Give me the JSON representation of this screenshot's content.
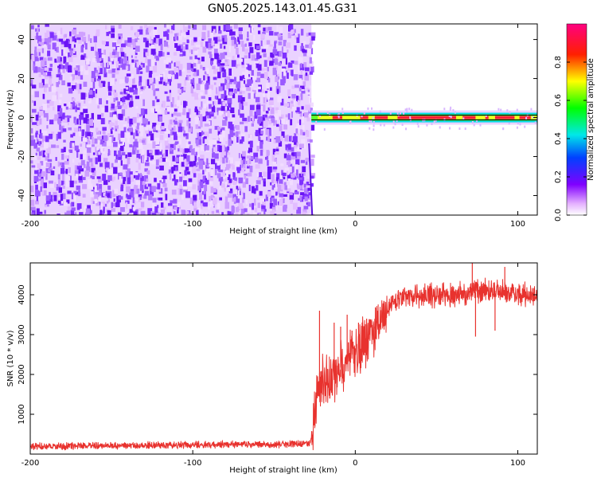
{
  "title": "GN05.2025.143.01.45.G31",
  "colors": {
    "snr_line": "#e8322e",
    "spectral_line": "#000000"
  },
  "chart_data": [
    {
      "type": "heatmap",
      "xlabel": "Height of straight line (km)",
      "ylabel": "Frequency (Hz)",
      "xlim": [
        -200,
        112
      ],
      "ylim": [
        -50,
        48
      ],
      "xticks": [
        -200,
        -100,
        0,
        100
      ],
      "yticks": [
        -40,
        -20,
        0,
        20,
        40
      ],
      "noise_region_x": [
        -200,
        -27
      ],
      "signal_region_x": [
        -27,
        112
      ],
      "signal_frequency_hz": 0,
      "colorbar": {
        "label": "Normalized spectral amplitude",
        "range": [
          0,
          1
        ],
        "ticks": [
          0.0,
          0.2,
          0.4,
          0.6,
          0.8
        ],
        "colormap": "rainbow (white-purple-blue-cyan-green-yellow-red-magenta)"
      }
    },
    {
      "type": "line",
      "xlabel": "Height of straight line (km)",
      "ylabel": "SNR (10 * v/v)",
      "xlim": [
        -200,
        112
      ],
      "ylim": [
        0,
        4800
      ],
      "xticks": [
        -200,
        -100,
        0,
        100
      ],
      "yticks": [
        1000,
        2000,
        3000,
        4000
      ],
      "series": [
        {
          "points": [
            [
              -200,
              200
            ],
            [
              -180,
              200
            ],
            [
              -160,
              210
            ],
            [
              -140,
              210
            ],
            [
              -120,
              220
            ],
            [
              -100,
              230
            ],
            [
              -80,
              240
            ],
            [
              -60,
              240
            ],
            [
              -40,
              250
            ],
            [
              -28,
              260
            ],
            [
              -26,
              700
            ],
            [
              -24,
              1400
            ],
            [
              -22,
              1700
            ],
            [
              -20,
              1900
            ],
            [
              -18,
              1750
            ],
            [
              -16,
              1900
            ],
            [
              -14,
              1950
            ],
            [
              -12,
              2000
            ],
            [
              -10,
              2150
            ],
            [
              -8,
              2200
            ],
            [
              -6,
              2300
            ],
            [
              -4,
              2400
            ],
            [
              -2,
              2500
            ],
            [
              0,
              2600
            ],
            [
              2,
              2650
            ],
            [
              4,
              2750
            ],
            [
              6,
              2850
            ],
            [
              8,
              2950
            ],
            [
              10,
              3050
            ],
            [
              12,
              3150
            ],
            [
              14,
              3300
            ],
            [
              16,
              3400
            ],
            [
              18,
              3500
            ],
            [
              20,
              3650
            ],
            [
              22,
              3750
            ],
            [
              25,
              3850
            ],
            [
              30,
              3900
            ],
            [
              35,
              3950
            ],
            [
              40,
              3950
            ],
            [
              50,
              4000
            ],
            [
              60,
              4000
            ],
            [
              70,
              4050
            ],
            [
              80,
              4100
            ],
            [
              90,
              4100
            ],
            [
              100,
              4050
            ],
            [
              112,
              3950
            ]
          ],
          "spikes": [
            [
              -22,
              3600
            ],
            [
              -13,
              3300
            ],
            [
              -9,
              3200
            ],
            [
              -5,
              3500
            ],
            [
              -2,
              3100
            ],
            [
              2,
              3300
            ],
            [
              7,
              3400
            ],
            [
              12,
              3200
            ],
            [
              72,
              4800
            ],
            [
              92,
              4700
            ],
            [
              74,
              2950
            ],
            [
              86,
              3100
            ]
          ]
        }
      ]
    }
  ]
}
